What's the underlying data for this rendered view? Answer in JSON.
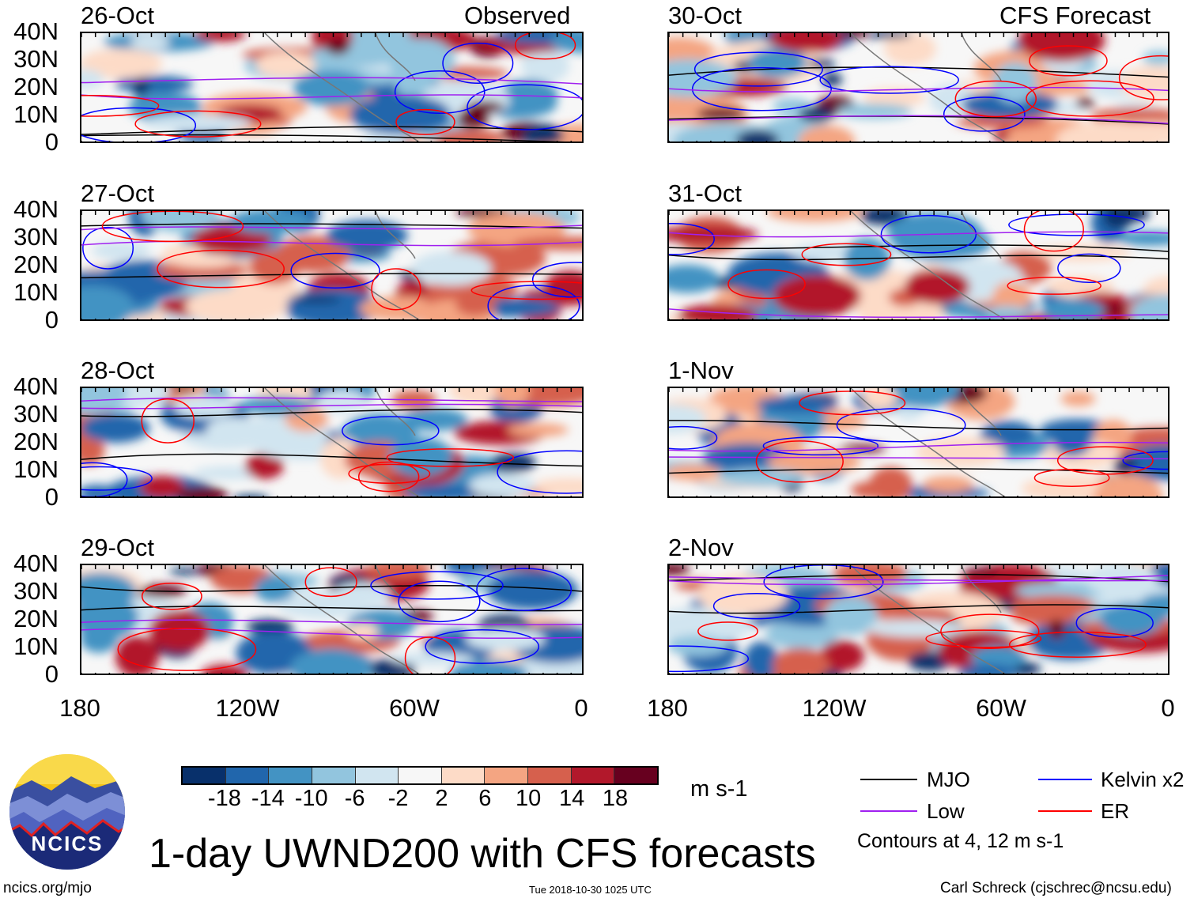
{
  "headers": {
    "left": "Observed",
    "right": "CFS Forecast"
  },
  "panels": [
    {
      "date": "26-Oct",
      "column": "observed"
    },
    {
      "date": "27-Oct",
      "column": "observed"
    },
    {
      "date": "28-Oct",
      "column": "observed"
    },
    {
      "date": "29-Oct",
      "column": "observed"
    },
    {
      "date": "30-Oct",
      "column": "forecast"
    },
    {
      "date": "31-Oct",
      "column": "forecast"
    },
    {
      "date": "1-Nov",
      "column": "forecast"
    },
    {
      "date": "2-Nov",
      "column": "forecast"
    }
  ],
  "y_ticks": [
    "40N",
    "30N",
    "20N",
    "10N",
    "0"
  ],
  "x_ticks": [
    "180",
    "120W",
    "60W",
    "0"
  ],
  "colorbar": {
    "ticks": [
      "-18",
      "-14",
      "-10",
      "-6",
      "-2",
      "2",
      "6",
      "10",
      "14",
      "18"
    ],
    "colors": [
      "#08306b",
      "#2166ac",
      "#4393c3",
      "#92c5de",
      "#d1e5f0",
      "#f7f7f7",
      "#fddbc7",
      "#f4a582",
      "#d6604d",
      "#b2182b",
      "#67001f"
    ],
    "units": "m s-1"
  },
  "legend": {
    "items": [
      {
        "label": "MJO",
        "color": "#000000"
      },
      {
        "label": "Kelvin x2",
        "color": "#0000ff"
      },
      {
        "label": "Low",
        "color": "#a020f0"
      },
      {
        "label": "ER",
        "color": "#ff0000"
      }
    ],
    "note": "Contours at 4, 12 m s-1"
  },
  "title": "1-day UWND200 with CFS forecasts",
  "logo": {
    "text": "NCICS"
  },
  "footer": {
    "url": "ncics.org/mjo",
    "timestamp": "Tue 2018-10-30 1025 UTC",
    "credit": "Carl Schreck (cjschrec@ncsu.edu)"
  }
}
